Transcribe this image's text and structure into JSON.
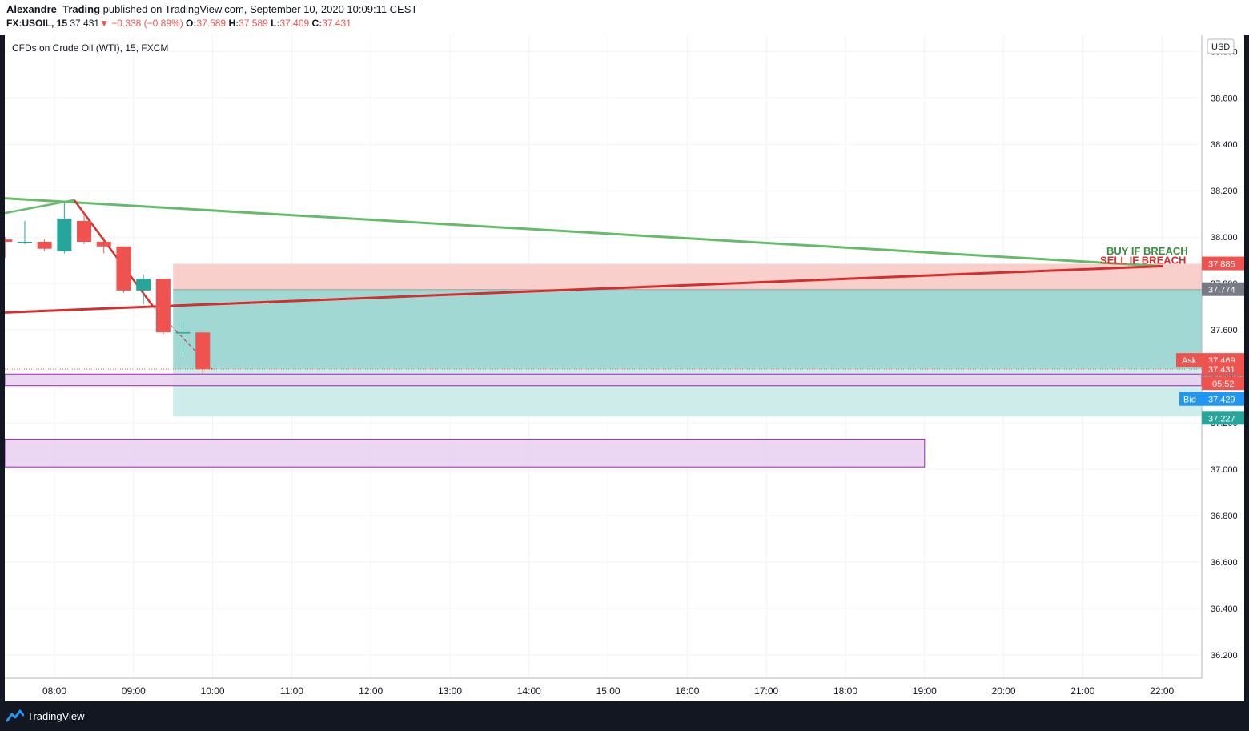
{
  "header": {
    "author": "Alexandre_Trading",
    "published": "published on TradingView.com, September 10, 2020 10:09:11 CEST",
    "symbol": "FX:USOIL, 15",
    "last": "37.431",
    "arrow": "▼",
    "change": "−0.338 (−0.89%)",
    "o_label": "O:",
    "o_value": "37.589",
    "h_label": "H:",
    "h_value": "37.589",
    "l_label": "L:",
    "l_value": "37.409",
    "c_label": "C:",
    "c_value": "37.431"
  },
  "footer": {
    "brand": "TradingView"
  },
  "colors": {
    "up": "#26a69a",
    "down": "#ef5350",
    "green_line": "#66bb6a",
    "red_line": "#d32f2f",
    "text_green": "#388e3c",
    "text_red": "#d32f2f",
    "stop_zone": "#f8cfcb",
    "target_zone": "#a1d8d4",
    "target_zone_light": "#cdecea",
    "purple_zone": "#e8d0ef",
    "purple_border": "#9c27b0",
    "ask": "#ef5350",
    "bid": "#2196f3",
    "grid": "#f0f3fa"
  },
  "chart_data": {
    "type": "candlestick",
    "title": "CFDs on Crude Oil (WTI), 15, FXCM",
    "currency": "USD",
    "ylim": [
      36.1,
      38.87
    ],
    "y_ticks": [
      "36.200",
      "36.400",
      "36.600",
      "36.800",
      "37.000",
      "37.200",
      "37.400",
      "37.600",
      "37.800",
      "38.000",
      "38.200",
      "38.400",
      "38.600",
      "38.800"
    ],
    "x_ticks": [
      {
        "label": "08:00",
        "h": 8
      },
      {
        "label": "09:00",
        "h": 9
      },
      {
        "label": "10:00",
        "h": 10
      },
      {
        "label": "11:00",
        "h": 11
      },
      {
        "label": "12:00",
        "h": 12
      },
      {
        "label": "13:00",
        "h": 13
      },
      {
        "label": "14:00",
        "h": 14
      },
      {
        "label": "15:00",
        "h": 15
      },
      {
        "label": "16:00",
        "h": 16
      },
      {
        "label": "17:00",
        "h": 17
      },
      {
        "label": "18:00",
        "h": 18
      },
      {
        "label": "19:00",
        "h": 19
      },
      {
        "label": "20:00",
        "h": 20
      },
      {
        "label": "21:00",
        "h": 21
      },
      {
        "label": "22:00",
        "h": 22
      }
    ],
    "candles": [
      {
        "t": 7.375,
        "o": 37.99,
        "h": 38.0,
        "l": 37.91,
        "c": 37.98
      },
      {
        "t": 7.625,
        "o": 37.98,
        "h": 38.07,
        "l": 37.97,
        "c": 37.98
      },
      {
        "t": 7.875,
        "o": 37.98,
        "h": 37.99,
        "l": 37.94,
        "c": 37.95
      },
      {
        "t": 8.125,
        "o": 37.94,
        "h": 38.15,
        "l": 37.93,
        "c": 38.08
      },
      {
        "t": 8.375,
        "o": 38.07,
        "h": 38.11,
        "l": 37.97,
        "c": 37.98
      },
      {
        "t": 8.625,
        "o": 37.98,
        "h": 38.0,
        "l": 37.93,
        "c": 37.96
      },
      {
        "t": 8.875,
        "o": 37.96,
        "h": 37.96,
        "l": 37.76,
        "c": 37.77
      },
      {
        "t": 9.125,
        "o": 37.77,
        "h": 37.84,
        "l": 37.71,
        "c": 37.82
      },
      {
        "t": 9.375,
        "o": 37.82,
        "h": 37.82,
        "l": 37.58,
        "c": 37.59
      },
      {
        "t": 9.625,
        "o": 37.59,
        "h": 37.64,
        "l": 37.49,
        "c": 37.59
      },
      {
        "t": 9.875,
        "o": 37.589,
        "h": 37.589,
        "l": 37.409,
        "c": 37.431
      }
    ],
    "trendlines": [
      {
        "name": "green",
        "x1": 7.0,
        "y1": 38.175,
        "x2": 22.0,
        "y2": 37.875
      },
      {
        "name": "red",
        "x1": 7.0,
        "y1": 37.67,
        "x2": 22.0,
        "y2": 37.875
      }
    ],
    "zigzag": [
      {
        "t": 7.0,
        "y": 38.08
      },
      {
        "t": 8.25,
        "y": 38.16
      },
      {
        "t": 9.25,
        "y": 37.7
      },
      {
        "t": 10.0,
        "y": 37.43
      }
    ],
    "position": {
      "t_start": 9.5,
      "entry": 37.774,
      "stop": 37.885,
      "target": 37.227,
      "current": 37.431
    },
    "zones": [
      {
        "t_start": 7.0,
        "t_end": 22.5,
        "top": 37.41,
        "bottom": 37.36
      },
      {
        "t_start": 7.0,
        "t_end": 19.0,
        "top": 37.13,
        "bottom": 37.01
      }
    ],
    "annotations": {
      "buy": "BUY IF BREACH",
      "sell": "SELL IF BREACH"
    },
    "price_labels": {
      "stop": "37.885",
      "entry": "37.774",
      "ask_label": "Ask",
      "ask": "37.469",
      "last": "37.431",
      "countdown": "05:52",
      "bid_label": "Bid",
      "bid": "37.429",
      "target": "37.227"
    }
  }
}
